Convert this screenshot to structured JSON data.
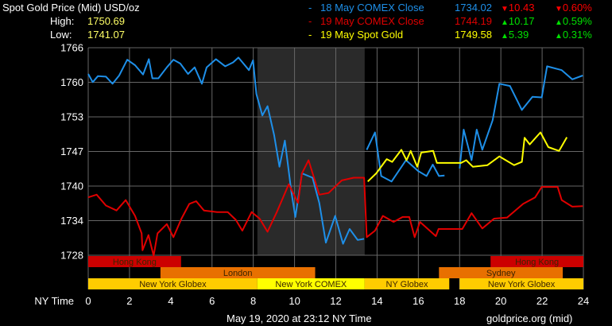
{
  "header": {
    "title": "Spot Gold Price (Mid) USD/oz",
    "high_label": "High:",
    "high_value": "1750.69",
    "low_label": "Low:",
    "low_value": "1741.07"
  },
  "legend": [
    {
      "dash": "-",
      "name": "18 May COMEX Close",
      "price": "1734.02",
      "change": "10.43",
      "pct": "0.60%",
      "direction": "down",
      "color": "#1e8fe8"
    },
    {
      "dash": "-",
      "name": "19 May COMEX Close",
      "price": "1744.19",
      "change": "10.17",
      "pct": "0.59%",
      "direction": "up",
      "color": "#e00000"
    },
    {
      "dash": "-",
      "name": "19 May Spot Gold",
      "price": "1749.58",
      "change": "5.39",
      "pct": "0.31%",
      "direction": "up",
      "color": "#ffff00"
    }
  ],
  "colors": {
    "up": "#00e000",
    "down": "#ff0000",
    "high_low_value": "#ffff66",
    "grid": "#666666",
    "comex_shade": "#2a2a2a"
  },
  "footer": {
    "timestamp": "May 19, 2020 at 23:12 NY Time",
    "source": "goldprice.org (mid)"
  },
  "chart_data": {
    "type": "line",
    "xlabel": "NY Time",
    "xlim": [
      0,
      24
    ],
    "xticks": [
      "0",
      "2",
      "4",
      "6",
      "8",
      "10",
      "12",
      "14",
      "16",
      "18",
      "20",
      "22",
      "24"
    ],
    "ylim": [
      1728,
      1766
    ],
    "yticks": [
      "1766",
      "1760",
      "1753",
      "1747",
      "1740",
      "1734",
      "1728"
    ],
    "grid": true,
    "shaded_period": [
      8.2,
      13.4
    ],
    "series": [
      {
        "name": "18 May COMEX Close",
        "color": "#1e8fe8",
        "segments": [
          [
            [
              0,
              1761.2
            ],
            [
              0.22,
              1759.7
            ],
            [
              0.47,
              1760.8
            ],
            [
              0.86,
              1760.7
            ],
            [
              1.18,
              1759.4
            ],
            [
              1.5,
              1760.9
            ],
            [
              1.89,
              1763.8
            ],
            [
              2.27,
              1762.8
            ],
            [
              2.66,
              1761.1
            ],
            [
              2.94,
              1763.9
            ],
            [
              3.11,
              1760.4
            ],
            [
              3.4,
              1760.4
            ],
            [
              3.81,
              1762.4
            ],
            [
              4.13,
              1763.8
            ],
            [
              4.46,
              1763.1
            ],
            [
              4.84,
              1761.2
            ],
            [
              5.16,
              1762.4
            ],
            [
              5.51,
              1759.4
            ],
            [
              5.74,
              1762.4
            ],
            [
              6.19,
              1763.9
            ],
            [
              6.64,
              1762.6
            ],
            [
              7.02,
              1763.3
            ],
            [
              7.28,
              1764.2
            ],
            [
              7.79,
              1761.9
            ],
            [
              7.99,
              1763.7
            ],
            [
              8.15,
              1757.5
            ],
            [
              8.44,
              1753.6
            ],
            [
              8.69,
              1755.3
            ],
            [
              9.01,
              1750.0
            ],
            [
              9.27,
              1744.2
            ],
            [
              9.53,
              1749.0
            ],
            [
              9.85,
              1739.5
            ],
            [
              10.04,
              1735.0
            ],
            [
              10.36,
              1743.0
            ],
            [
              10.87,
              1742.2
            ],
            [
              11.2,
              1737.6
            ],
            [
              11.52,
              1730.3
            ],
            [
              11.97,
              1735.2
            ],
            [
              12.35,
              1730.1
            ],
            [
              12.67,
              1732.8
            ],
            [
              13.06,
              1730.8
            ],
            [
              13.37,
              1731.0
            ]
          ],
          [
            [
              13.5,
              1747.3
            ],
            [
              13.9,
              1750.5
            ],
            [
              14.2,
              1742.5
            ],
            [
              14.7,
              1741.5
            ],
            [
              15.4,
              1745.4
            ],
            [
              16.0,
              1743.4
            ],
            [
              16.4,
              1742.5
            ],
            [
              16.7,
              1744.6
            ],
            [
              17.0,
              1742.5
            ],
            [
              17.27,
              1742.6
            ]
          ],
          [
            [
              18.0,
              1743.9
            ],
            [
              18.2,
              1751.0
            ],
            [
              18.58,
              1745.4
            ],
            [
              18.83,
              1751.0
            ],
            [
              19.1,
              1747.3
            ],
            [
              19.6,
              1752.7
            ],
            [
              19.93,
              1759.4
            ],
            [
              20.44,
              1759.0
            ],
            [
              21.02,
              1754.6
            ],
            [
              21.53,
              1757.0
            ],
            [
              21.98,
              1756.9
            ],
            [
              22.24,
              1762.6
            ],
            [
              22.95,
              1761.9
            ],
            [
              23.46,
              1760.2
            ],
            [
              23.97,
              1760.9
            ]
          ]
        ]
      },
      {
        "name": "19 May COMEX Close",
        "color": "#e00000",
        "segments": [
          [
            [
              0,
              1738.6
            ],
            [
              0.41,
              1739.1
            ],
            [
              0.86,
              1737.1
            ],
            [
              1.37,
              1736.2
            ],
            [
              1.82,
              1738.1
            ],
            [
              2.27,
              1735.2
            ],
            [
              2.59,
              1732.0
            ],
            [
              2.63,
              1728.9
            ],
            [
              2.92,
              1731.7
            ],
            [
              3.17,
              1727.9
            ],
            [
              3.36,
              1732.0
            ],
            [
              3.81,
              1733.7
            ],
            [
              4.13,
              1731.3
            ],
            [
              4.52,
              1734.7
            ],
            [
              4.9,
              1737.4
            ],
            [
              5.23,
              1737.9
            ],
            [
              5.61,
              1736.2
            ],
            [
              6.25,
              1735.9
            ],
            [
              6.76,
              1735.9
            ],
            [
              7.15,
              1734.5
            ],
            [
              7.47,
              1732.5
            ],
            [
              7.92,
              1735.9
            ],
            [
              8.31,
              1734.7
            ],
            [
              8.69,
              1732.3
            ],
            [
              9.14,
              1735.9
            ],
            [
              9.72,
              1741.0
            ],
            [
              10.17,
              1737.6
            ],
            [
              10.36,
              1743.0
            ],
            [
              10.68,
              1745.4
            ],
            [
              11.2,
              1739.1
            ],
            [
              11.65,
              1739.4
            ],
            [
              12.29,
              1741.7
            ],
            [
              12.87,
              1742.2
            ],
            [
              13.37,
              1742.2
            ],
            [
              13.5,
              1731.3
            ],
            [
              13.9,
              1732.5
            ],
            [
              14.28,
              1735.2
            ],
            [
              14.8,
              1734.1
            ],
            [
              15.24,
              1735.0
            ],
            [
              15.56,
              1735.0
            ],
            [
              15.82,
              1731.3
            ],
            [
              16.08,
              1734.1
            ],
            [
              16.85,
              1731.5
            ],
            [
              16.98,
              1732.8
            ],
            [
              18.13,
              1732.8
            ],
            [
              18.58,
              1735.7
            ],
            [
              19.1,
              1732.9
            ],
            [
              19.67,
              1734.7
            ],
            [
              20.3,
              1734.9
            ],
            [
              21.08,
              1737.4
            ],
            [
              21.66,
              1738.6
            ],
            [
              21.98,
              1740.5
            ],
            [
              22.75,
              1740.5
            ],
            [
              22.95,
              1738.1
            ],
            [
              23.46,
              1736.9
            ],
            [
              23.97,
              1737.0
            ]
          ]
        ]
      },
      {
        "name": "19 May Spot Gold",
        "color": "#ffff00",
        "segments": [
          [
            [
              13.55,
              1741.5
            ],
            [
              13.96,
              1743.0
            ],
            [
              14.47,
              1745.6
            ],
            [
              14.73,
              1745.1
            ],
            [
              15.18,
              1747.3
            ],
            [
              15.43,
              1745.4
            ],
            [
              15.63,
              1747.1
            ],
            [
              15.95,
              1744.2
            ],
            [
              16.14,
              1746.8
            ],
            [
              16.72,
              1747.1
            ],
            [
              16.9,
              1744.9
            ],
            [
              18.07,
              1744.9
            ],
            [
              18.32,
              1745.4
            ],
            [
              18.64,
              1744.2
            ],
            [
              19.35,
              1744.5
            ],
            [
              19.93,
              1746.1
            ],
            [
              20.64,
              1744.5
            ],
            [
              21.02,
              1745.1
            ],
            [
              21.15,
              1749.5
            ],
            [
              21.4,
              1748.3
            ],
            [
              21.92,
              1750.5
            ],
            [
              22.3,
              1747.8
            ],
            [
              22.82,
              1747.1
            ],
            [
              23.2,
              1749.6
            ]
          ]
        ]
      }
    ],
    "sessions": [
      {
        "label": "Hong Kong",
        "row": 0,
        "start": 0,
        "end": 4.5,
        "color": "#cc0000"
      },
      {
        "label": "Hong Kong",
        "row": 0,
        "start": 19.5,
        "end": 24,
        "color": "#cc0000"
      },
      {
        "label": "London",
        "row": 1,
        "start": 3.5,
        "end": 11,
        "color": "#e87000"
      },
      {
        "label": "Sydney",
        "row": 1,
        "start": 17,
        "end": 23,
        "color": "#e87000"
      },
      {
        "label": "New York Globex",
        "row": 2,
        "start": 0,
        "end": 8.2,
        "color": "#ffcc00"
      },
      {
        "label": "New York COMEX",
        "row": 2,
        "start": 8.2,
        "end": 13.4,
        "color": "#ffff00"
      },
      {
        "label": "NY Globex",
        "row": 2,
        "start": 13.4,
        "end": 17.5,
        "color": "#ffcc00"
      },
      {
        "label": "New York Globex",
        "row": 2,
        "start": 18,
        "end": 24,
        "color": "#ffcc00"
      }
    ]
  }
}
